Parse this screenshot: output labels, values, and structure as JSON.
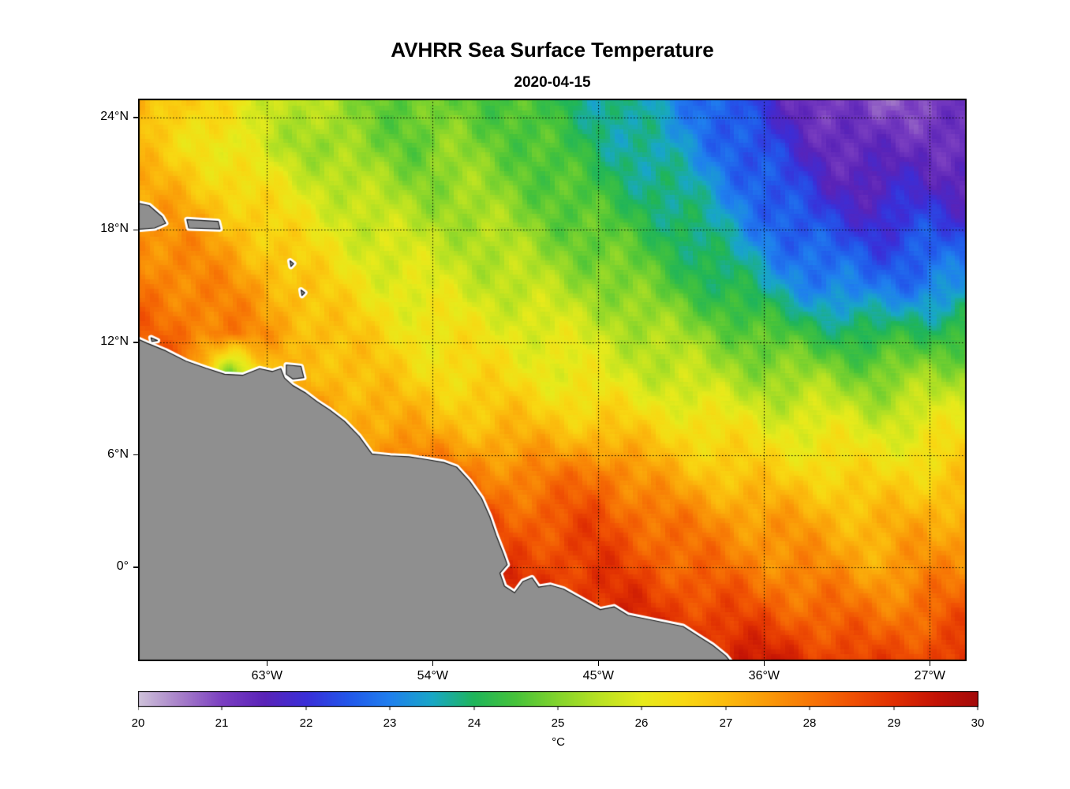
{
  "chart_data": {
    "type": "heatmap",
    "title": "AVHRR Sea Surface Temperature",
    "subtitle": "2020-04-15",
    "xlabel": "",
    "ylabel": "",
    "grid": true,
    "lon_range": [
      -70,
      -25
    ],
    "lat_range": [
      -5,
      25
    ],
    "x_ticks": [
      {
        "lon": -63,
        "label": "63°W"
      },
      {
        "lon": -54,
        "label": "54°W"
      },
      {
        "lon": -45,
        "label": "45°W"
      },
      {
        "lon": -36,
        "label": "36°W"
      },
      {
        "lon": -27,
        "label": "27°W"
      }
    ],
    "y_ticks": [
      {
        "lat": 24,
        "label": "24°N"
      },
      {
        "lat": 18,
        "label": "18°N"
      },
      {
        "lat": 12,
        "label": "12°N"
      },
      {
        "lat": 6,
        "label": "6°N"
      },
      {
        "lat": 0,
        "label": "0°"
      }
    ],
    "value_range": [
      20,
      30
    ],
    "colorbar": {
      "label": "°C",
      "ticks": [
        20,
        21,
        22,
        23,
        24,
        25,
        26,
        27,
        28,
        29,
        30
      ]
    },
    "colormap_stops": [
      [
        20.0,
        "#cfc3da"
      ],
      [
        20.5,
        "#a77fc9"
      ],
      [
        21.0,
        "#7b3fc1"
      ],
      [
        21.5,
        "#5a23b8"
      ],
      [
        22.0,
        "#3a2ed8"
      ],
      [
        22.5,
        "#2257ea"
      ],
      [
        23.0,
        "#1f80ee"
      ],
      [
        23.5,
        "#18a7c6"
      ],
      [
        24.0,
        "#1fb55a"
      ],
      [
        24.5,
        "#47c33a"
      ],
      [
        25.0,
        "#84d42c"
      ],
      [
        25.5,
        "#bae222"
      ],
      [
        26.0,
        "#e7ea1b"
      ],
      [
        26.5,
        "#f8d812"
      ],
      [
        27.0,
        "#fbbb0d"
      ],
      [
        27.5,
        "#fa9a08"
      ],
      [
        28.0,
        "#f77605"
      ],
      [
        28.5,
        "#f05103"
      ],
      [
        29.0,
        "#e02f02"
      ],
      [
        29.5,
        "#c41305"
      ],
      [
        30.0,
        "#a30a0a"
      ]
    ],
    "sst_grid": {
      "lons": [
        -70,
        -67.5,
        -65,
        -62.5,
        -60,
        -57.5,
        -55,
        -52.5,
        -50,
        -47.5,
        -45,
        -42.5,
        -40,
        -37.5,
        -35,
        -32.5,
        -30,
        -27.5,
        -25
      ],
      "lats": [
        -5,
        -2.5,
        0,
        2.5,
        5,
        7.5,
        10,
        12.5,
        15,
        17.5,
        20,
        22.5,
        25
      ],
      "values": [
        [
          29.6,
          29.6,
          29.6,
          29.6,
          29.6,
          29.6,
          29.6,
          29.6,
          29.6,
          29.5,
          29.5,
          29.4,
          29.4,
          29.4,
          29.2,
          28.9,
          28.6,
          28.8,
          29.0
        ],
        [
          29.4,
          29.4,
          29.4,
          29.4,
          29.4,
          29.4,
          29.4,
          29.4,
          29.3,
          29.2,
          29.1,
          29.0,
          28.8,
          28.6,
          28.4,
          28.2,
          28.0,
          28.2,
          28.4
        ],
        [
          29.2,
          29.2,
          29.2,
          29.2,
          29.2,
          29.2,
          29.2,
          29.1,
          28.8,
          28.8,
          28.8,
          28.6,
          28.2,
          28.0,
          27.8,
          27.6,
          27.4,
          27.6,
          27.8
        ],
        [
          29.2,
          29.2,
          29.2,
          29.2,
          29.2,
          29.1,
          29.0,
          28.8,
          28.4,
          28.4,
          28.6,
          28.2,
          27.8,
          27.6,
          27.4,
          27.2,
          27.0,
          27.2,
          27.4
        ],
        [
          29.0,
          29.0,
          28.8,
          28.6,
          28.4,
          28.2,
          28.1,
          28.0,
          27.8,
          27.8,
          28.2,
          27.4,
          27.0,
          26.8,
          26.6,
          26.6,
          26.4,
          26.6,
          26.8
        ],
        [
          28.5,
          28.4,
          28.2,
          28.0,
          27.6,
          27.4,
          27.2,
          27.0,
          27.0,
          26.9,
          26.8,
          26.6,
          26.4,
          26.2,
          26.0,
          26.0,
          25.8,
          26.0,
          26.2
        ],
        [
          28.3,
          28.2,
          24.6,
          26.8,
          27.2,
          26.9,
          26.6,
          26.5,
          26.4,
          26.2,
          26.0,
          25.8,
          25.6,
          25.4,
          25.2,
          25.2,
          25.0,
          25.2,
          25.4
        ],
        [
          28.2,
          28.1,
          27.9,
          27.4,
          27.0,
          26.6,
          26.3,
          26.2,
          26.1,
          25.9,
          25.7,
          25.4,
          25.1,
          24.8,
          24.4,
          24.2,
          24.0,
          24.2,
          24.4
        ],
        [
          28.0,
          27.9,
          27.6,
          27.2,
          26.6,
          26.2,
          25.9,
          25.8,
          25.6,
          25.4,
          25.2,
          24.8,
          24.4,
          24.0,
          23.4,
          23.0,
          22.8,
          23.0,
          23.2
        ],
        [
          27.8,
          27.6,
          27.2,
          26.6,
          26.2,
          25.8,
          25.6,
          25.5,
          25.3,
          25.0,
          24.7,
          24.4,
          24.0,
          23.4,
          22.8,
          22.4,
          22.2,
          22.4,
          22.3
        ],
        [
          27.3,
          27.0,
          26.6,
          26.2,
          25.8,
          25.4,
          25.2,
          25.2,
          25.0,
          24.7,
          24.3,
          24.0,
          23.6,
          23.0,
          22.4,
          21.8,
          21.6,
          21.8,
          21.6
        ],
        [
          26.8,
          26.5,
          26.0,
          25.6,
          25.2,
          25.0,
          24.8,
          25.0,
          24.8,
          24.4,
          24.0,
          23.6,
          23.2,
          22.6,
          22.0,
          21.4,
          21.2,
          21.4,
          21.2
        ],
        [
          27.2,
          26.8,
          26.2,
          25.8,
          25.3,
          25.0,
          24.6,
          24.8,
          24.5,
          24.2,
          23.8,
          23.5,
          23.0,
          22.4,
          21.6,
          21.0,
          20.8,
          21.0,
          20.9
        ]
      ]
    },
    "land": {
      "fill": "#8f8f8f",
      "outline": "#1a1a1a",
      "halo": "#ffffff",
      "mainland": [
        [
          -70.5,
          12.4
        ],
        [
          -69.5,
          11.95
        ],
        [
          -68.5,
          11.55
        ],
        [
          -67.4,
          11.0
        ],
        [
          -66.3,
          10.62
        ],
        [
          -65.3,
          10.3
        ],
        [
          -64.3,
          10.25
        ],
        [
          -63.4,
          10.6
        ],
        [
          -62.7,
          10.45
        ],
        [
          -62.25,
          10.6
        ],
        [
          -62.05,
          10.1
        ],
        [
          -61.6,
          9.7
        ],
        [
          -60.9,
          9.3
        ],
        [
          -60.3,
          8.85
        ],
        [
          -59.6,
          8.4
        ],
        [
          -58.8,
          7.8
        ],
        [
          -58.0,
          7.0
        ],
        [
          -57.3,
          6.05
        ],
        [
          -56.3,
          5.95
        ],
        [
          -55.3,
          5.9
        ],
        [
          -54.3,
          5.75
        ],
        [
          -53.4,
          5.6
        ],
        [
          -52.7,
          5.35
        ],
        [
          -52.0,
          4.6
        ],
        [
          -51.35,
          3.7
        ],
        [
          -50.9,
          2.7
        ],
        [
          -50.55,
          1.7
        ],
        [
          -50.15,
          0.7
        ],
        [
          -49.95,
          0.15
        ],
        [
          -50.35,
          -0.3
        ],
        [
          -50.1,
          -1.0
        ],
        [
          -49.55,
          -1.35
        ],
        [
          -49.1,
          -0.75
        ],
        [
          -48.6,
          -0.55
        ],
        [
          -48.25,
          -1.05
        ],
        [
          -47.6,
          -0.95
        ],
        [
          -46.9,
          -1.15
        ],
        [
          -45.9,
          -1.7
        ],
        [
          -44.9,
          -2.25
        ],
        [
          -44.15,
          -2.1
        ],
        [
          -43.4,
          -2.55
        ],
        [
          -42.4,
          -2.75
        ],
        [
          -41.4,
          -2.95
        ],
        [
          -40.4,
          -3.15
        ],
        [
          -39.6,
          -3.65
        ],
        [
          -38.8,
          -4.15
        ],
        [
          -38.1,
          -4.7
        ],
        [
          -37.5,
          -5.4
        ],
        [
          -70.5,
          -5.4
        ]
      ],
      "islands": [
        [
          [
            -70.4,
            19.5
          ],
          [
            -69.4,
            19.3
          ],
          [
            -68.7,
            18.7
          ],
          [
            -68.5,
            18.35
          ],
          [
            -69.1,
            18.1
          ],
          [
            -70.4,
            18.0
          ]
        ],
        [
          [
            -67.35,
            18.55
          ],
          [
            -65.65,
            18.45
          ],
          [
            -65.55,
            18.05
          ],
          [
            -67.25,
            18.1
          ]
        ],
        [
          [
            -61.95,
            10.8
          ],
          [
            -61.15,
            10.72
          ],
          [
            -61.0,
            10.12
          ],
          [
            -61.6,
            10.05
          ],
          [
            -61.95,
            10.3
          ]
        ],
        [
          [
            -61.75,
            16.35
          ],
          [
            -61.55,
            16.2
          ],
          [
            -61.7,
            16.05
          ]
        ],
        [
          [
            -61.15,
            14.8
          ],
          [
            -60.95,
            14.65
          ],
          [
            -61.1,
            14.5
          ]
        ],
        [
          [
            -69.3,
            12.25
          ],
          [
            -68.95,
            12.1
          ],
          [
            -69.25,
            12.05
          ]
        ]
      ]
    }
  }
}
